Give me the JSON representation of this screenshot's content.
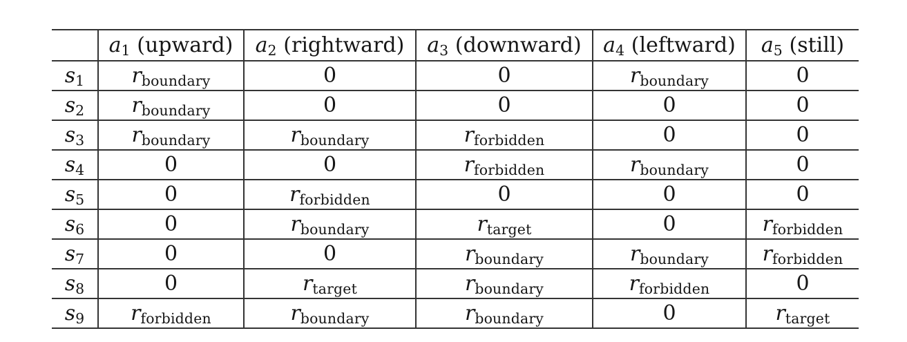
{
  "table": {
    "corner_label": "",
    "action_columns": [
      {
        "symbol": "a",
        "index": "1",
        "direction_label": "(upward)"
      },
      {
        "symbol": "a",
        "index": "2",
        "direction_label": "(rightward)"
      },
      {
        "symbol": "a",
        "index": "3",
        "direction_label": "(downward)"
      },
      {
        "symbol": "a",
        "index": "4",
        "direction_label": "(leftward)"
      },
      {
        "symbol": "a",
        "index": "5",
        "direction_label": "(still)"
      }
    ],
    "reward_symbol": "r",
    "state_rows": [
      {
        "state": {
          "symbol": "s",
          "index": "1"
        },
        "rewards": [
          "r_boundary",
          "0",
          "0",
          "r_boundary",
          "0"
        ]
      },
      {
        "state": {
          "symbol": "s",
          "index": "2"
        },
        "rewards": [
          "r_boundary",
          "0",
          "0",
          "0",
          "0"
        ]
      },
      {
        "state": {
          "symbol": "s",
          "index": "3"
        },
        "rewards": [
          "r_boundary",
          "r_boundary",
          "r_forbidden",
          "0",
          "0"
        ]
      },
      {
        "state": {
          "symbol": "s",
          "index": "4"
        },
        "rewards": [
          "0",
          "0",
          "r_forbidden",
          "r_boundary",
          "0"
        ]
      },
      {
        "state": {
          "symbol": "s",
          "index": "5"
        },
        "rewards": [
          "0",
          "r_forbidden",
          "0",
          "0",
          "0"
        ]
      },
      {
        "state": {
          "symbol": "s",
          "index": "6"
        },
        "rewards": [
          "0",
          "r_boundary",
          "r_target",
          "0",
          "r_forbidden"
        ]
      },
      {
        "state": {
          "symbol": "s",
          "index": "7"
        },
        "rewards": [
          "0",
          "0",
          "r_boundary",
          "r_boundary",
          "r_forbidden"
        ]
      },
      {
        "state": {
          "symbol": "s",
          "index": "8"
        },
        "rewards": [
          "0",
          "r_target",
          "r_boundary",
          "r_forbidden",
          "0"
        ]
      },
      {
        "state": {
          "symbol": "s",
          "index": "9"
        },
        "rewards": [
          "r_forbidden",
          "r_boundary",
          "r_boundary",
          "0",
          "r_target"
        ]
      }
    ]
  },
  "style": {
    "rule_color": "#333333",
    "text_color": "#161616",
    "background": "#ffffff"
  }
}
